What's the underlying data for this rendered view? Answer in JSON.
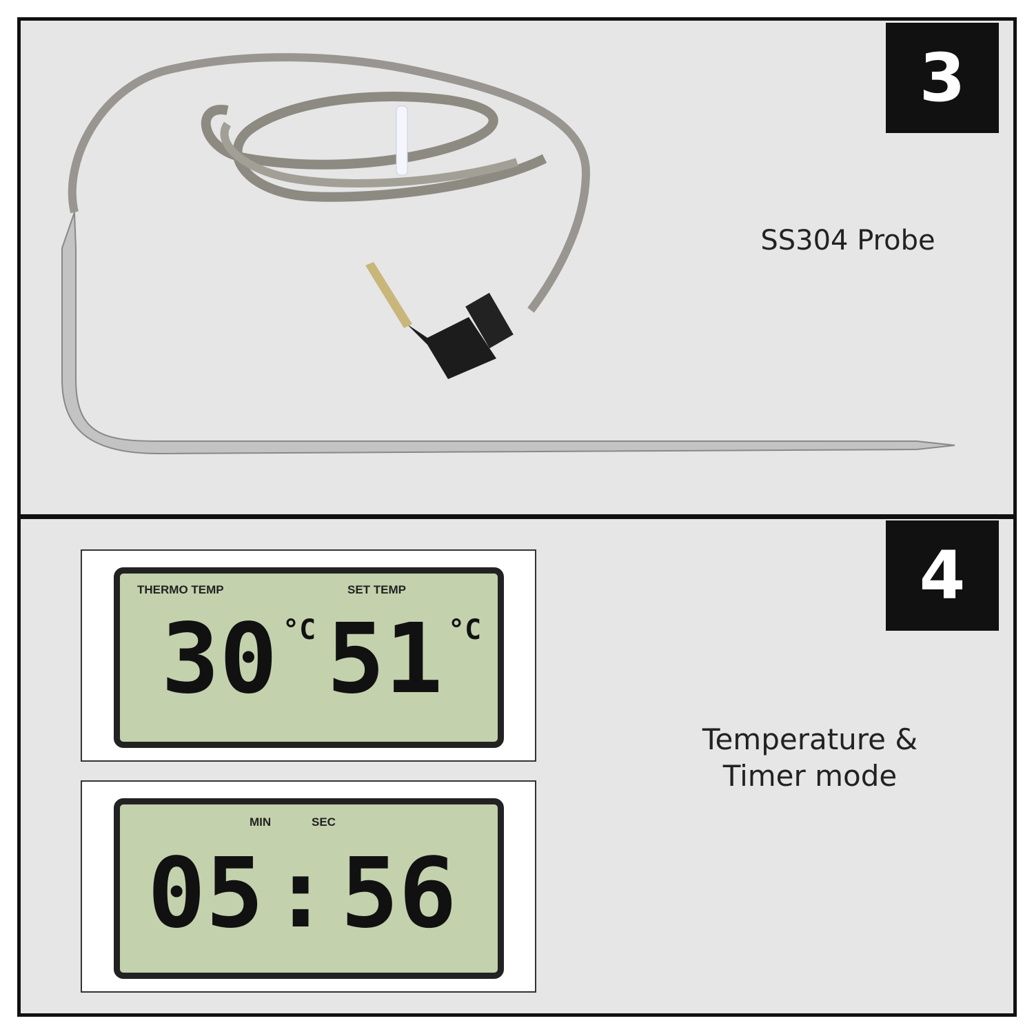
{
  "panel3": {
    "badge": "3",
    "caption": "SS304 Probe"
  },
  "panel4": {
    "badge": "4",
    "caption_line1": "Temperature &",
    "caption_line2": "Timer mode",
    "temp_display": {
      "left_label": "THERMO TEMP",
      "right_label": "SET TEMP",
      "thermo_value": "30",
      "set_value": "51",
      "unit": "°C"
    },
    "timer_display": {
      "min_label": "MIN",
      "sec_label": "SEC",
      "minutes": "05",
      "separator": ":",
      "seconds": "56"
    }
  },
  "colors": {
    "background": "#e6e6e6",
    "badge": "#111111",
    "lcd": "#c3d1ad"
  }
}
